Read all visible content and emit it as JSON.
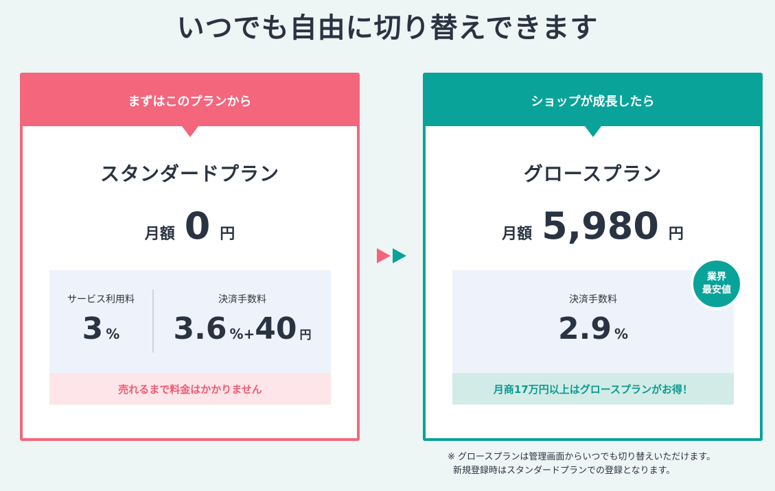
{
  "title": "いつでも自由に切り替えできます",
  "standard": {
    "header": "まずはこのプランから",
    "name": "スタンダードプラン",
    "monthly_label": "月額",
    "monthly_value": "0",
    "yen": "円",
    "service_fee_label": "サービス利用料",
    "service_fee_value": "3",
    "percent": "%",
    "payment_fee_label": "決済手数料",
    "payment_fee_percent": "3.6",
    "plus_percent": "%+",
    "payment_fee_fixed": "40",
    "note": "売れるまで料金はかかりません",
    "accent": "#f4667c"
  },
  "growth": {
    "header": "ショップが成長したら",
    "name": "グロースプラン",
    "monthly_label": "月額",
    "monthly_value": "5,980",
    "yen": "円",
    "payment_fee_label": "決済手数料",
    "payment_fee_value": "2.9",
    "percent": "%",
    "badge_line1": "業界",
    "badge_line2": "最安値",
    "note": "月商17万円以上はグロースプランがお得！",
    "accent": "#0aa39a"
  },
  "footnote": {
    "line1": "※ グロースプランは管理画面からいつでも切り替えいただけます。",
    "line2": "新規登録時はスタンダードプランでの登録となります。"
  },
  "icons": [
    "play-arrow-pink-icon",
    "play-arrow-teal-icon"
  ]
}
